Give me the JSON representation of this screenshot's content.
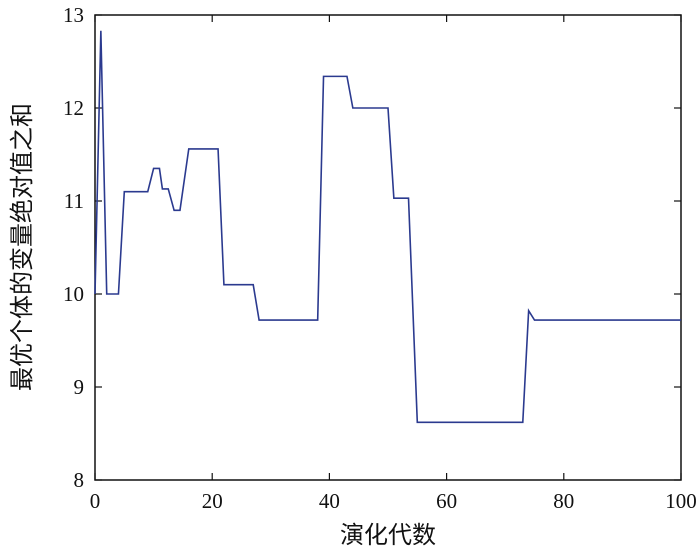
{
  "chart_data": {
    "type": "line",
    "title": "",
    "xlabel": "演化代数",
    "ylabel": "最优个体的变量绝对值之和",
    "xlim": [
      0,
      100
    ],
    "ylim": [
      8,
      13
    ],
    "x_ticks": [
      0,
      20,
      40,
      60,
      80,
      100
    ],
    "y_ticks": [
      8,
      9,
      10,
      11,
      12,
      13
    ],
    "grid": false,
    "legend": "none",
    "series": [
      {
        "color": "#2b3a8f",
        "points": [
          [
            0,
            10.0
          ],
          [
            1,
            12.83
          ],
          [
            2,
            10.0
          ],
          [
            4,
            10.0
          ],
          [
            5,
            11.1
          ],
          [
            9,
            11.1
          ],
          [
            10,
            11.35
          ],
          [
            11,
            11.35
          ],
          [
            11.5,
            11.13
          ],
          [
            12.5,
            11.13
          ],
          [
            13.5,
            10.9
          ],
          [
            14.5,
            10.9
          ],
          [
            16,
            11.56
          ],
          [
            21,
            11.56
          ],
          [
            22,
            10.1
          ],
          [
            27,
            10.1
          ],
          [
            28,
            9.72
          ],
          [
            38,
            9.72
          ],
          [
            39,
            12.34
          ],
          [
            43,
            12.34
          ],
          [
            44,
            12.0
          ],
          [
            50,
            12.0
          ],
          [
            51,
            11.03
          ],
          [
            53.5,
            11.03
          ],
          [
            55,
            8.62
          ],
          [
            73,
            8.62
          ],
          [
            74,
            9.82
          ],
          [
            75,
            9.72
          ],
          [
            100,
            9.72
          ]
        ]
      }
    ]
  }
}
